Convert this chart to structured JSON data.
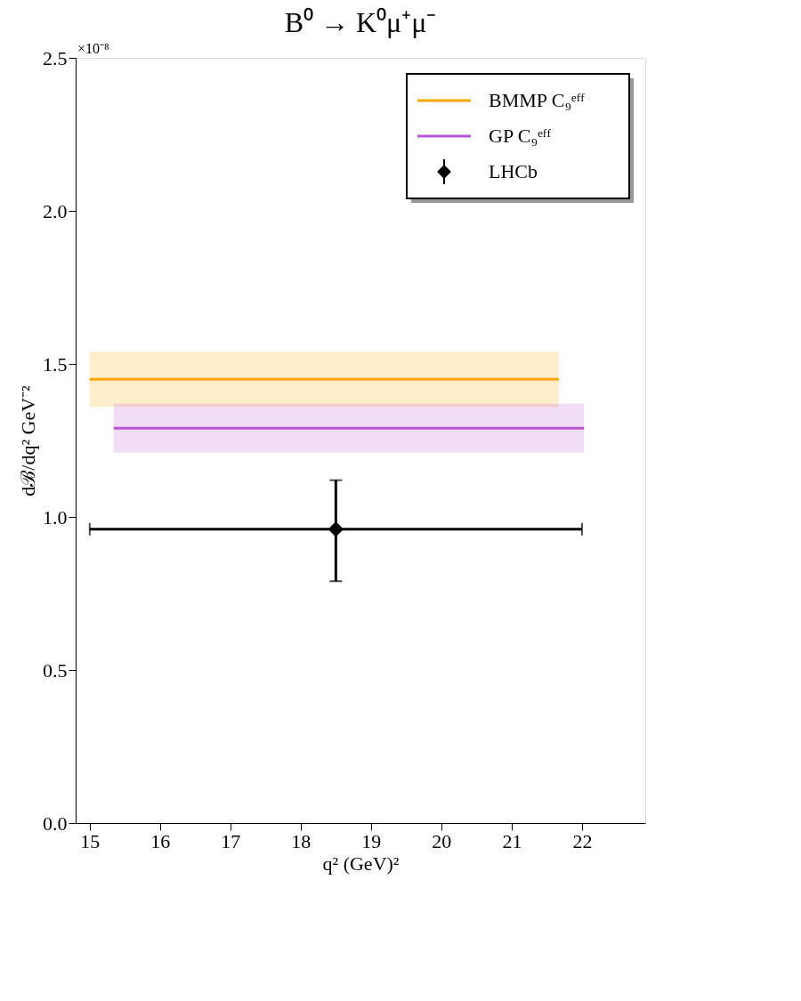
{
  "chart_data": {
    "type": "line",
    "title": "B⁰ → K⁰μ⁺μ⁻",
    "xlabel": "q² (GeV)²",
    "ylabel": "dℬ/dq² GeV⁻²",
    "annotations": [
      "×10⁻⁸"
    ],
    "xlim": [
      14.8,
      22.9
    ],
    "xticks": [
      15,
      16,
      17,
      18,
      19,
      20,
      21,
      22
    ],
    "ylim": [
      0,
      2.5
    ],
    "yticks": [
      {
        "value": 0,
        "label": "0.0"
      },
      0.5,
      {
        "value": 1,
        "label": "1.0"
      },
      1.5,
      {
        "value": 2,
        "label": "2.0"
      },
      2.5
    ],
    "grid": false,
    "legend": "top right",
    "series": [
      {
        "name": "BMMP C₉ᵉᶠᶠ",
        "color": "#ffa500",
        "x": [
          15.0,
          21.67
        ],
        "values": [
          1.45,
          1.45
        ],
        "lower": [
          1.36,
          1.36
        ],
        "upper": [
          1.54,
          1.54
        ]
      },
      {
        "name": "GP C₉ᵉᶠᶠ",
        "color": "#ba55d3",
        "x": [
          15.34,
          22.03
        ],
        "values": [
          1.29,
          1.29
        ],
        "lower": [
          1.21,
          1.21
        ],
        "upper": [
          1.37,
          1.37
        ]
      },
      {
        "name": "LHCb",
        "type": "scatter",
        "color": "#000000",
        "marker": "diamond",
        "x": [
          18.5
        ],
        "values": [
          0.96
        ],
        "errors": [
          [
            0.79,
            1.12
          ]
        ],
        "xerrors": [
          [
            15.0,
            22.0
          ]
        ]
      }
    ]
  }
}
